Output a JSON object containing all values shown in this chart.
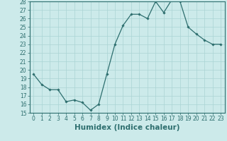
{
  "x": [
    0,
    1,
    2,
    3,
    4,
    5,
    6,
    7,
    8,
    9,
    10,
    11,
    12,
    13,
    14,
    15,
    16,
    17,
    18,
    19,
    20,
    21,
    22,
    23
  ],
  "y": [
    19.5,
    18.3,
    17.7,
    17.7,
    16.3,
    16.5,
    16.2,
    15.3,
    16.0,
    19.5,
    23.0,
    25.2,
    26.5,
    26.5,
    26.0,
    28.0,
    26.7,
    28.2,
    28.0,
    25.0,
    24.2,
    23.5,
    23.0,
    23.0
  ],
  "line_color": "#2d6e6e",
  "marker": "D",
  "marker_size": 1.8,
  "bg_color": "#cceaea",
  "grid_color": "#aad4d4",
  "xlabel": "Humidex (Indice chaleur)",
  "ylim": [
    15,
    28
  ],
  "xlim": [
    -0.5,
    23.5
  ],
  "yticks": [
    15,
    16,
    17,
    18,
    19,
    20,
    21,
    22,
    23,
    24,
    25,
    26,
    27,
    28
  ],
  "xticks": [
    0,
    1,
    2,
    3,
    4,
    5,
    6,
    7,
    8,
    9,
    10,
    11,
    12,
    13,
    14,
    15,
    16,
    17,
    18,
    19,
    20,
    21,
    22,
    23
  ],
  "xtick_labels": [
    "0",
    "1",
    "2",
    "3",
    "4",
    "5",
    "6",
    "7",
    "8",
    "9",
    "10",
    "11",
    "12",
    "13",
    "14",
    "15",
    "16",
    "17",
    "18",
    "19",
    "20",
    "21",
    "22",
    "23"
  ],
  "tick_fontsize": 5.5,
  "xlabel_fontsize": 7.5
}
